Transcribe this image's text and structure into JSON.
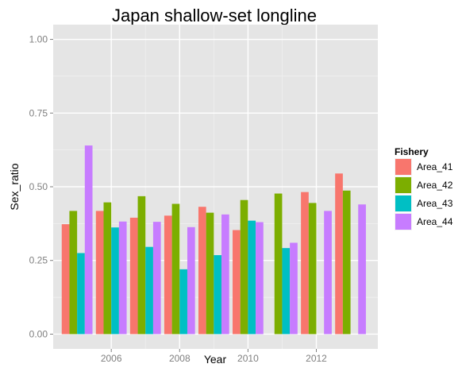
{
  "chart_data": {
    "type": "bar",
    "title": "Japan shallow-set longline",
    "xlabel": "Year",
    "ylabel": "Sex_ratio",
    "ylim": [
      -0.05,
      1.05
    ],
    "yticks": [
      "0.00",
      "0.25",
      "0.50",
      "0.75",
      "1.00"
    ],
    "ytick_values": [
      0,
      0.25,
      0.5,
      0.75,
      1.0
    ],
    "xticks": [
      "2006",
      "2008",
      "2010",
      "2012"
    ],
    "xtick_values": [
      2006,
      2008,
      2010,
      2012
    ],
    "xlim": [
      2004.3,
      2013.8
    ],
    "x": [
      2005,
      2006,
      2007,
      2008,
      2009,
      2010,
      2011,
      2012,
      2013
    ],
    "grid": true,
    "legend": {
      "title": "Fishery",
      "placement": "right"
    },
    "series": [
      {
        "name": "Area_41",
        "color": "#F8766D",
        "values": [
          0.373,
          0.418,
          0.395,
          0.402,
          0.432,
          0.353,
          null,
          0.482,
          0.545
        ]
      },
      {
        "name": "Area_42",
        "color": "#7CAE00",
        "values": [
          0.418,
          0.447,
          0.468,
          0.442,
          0.412,
          0.455,
          0.477,
          0.445,
          0.487
        ]
      },
      {
        "name": "Area_43",
        "color": "#00BFC4",
        "values": [
          0.275,
          0.362,
          0.296,
          0.22,
          0.268,
          0.385,
          0.292,
          null,
          null
        ]
      },
      {
        "name": "Area_44",
        "color": "#C77CFF",
        "values": [
          0.64,
          0.382,
          0.381,
          0.363,
          0.406,
          0.38,
          0.31,
          0.418,
          0.44
        ]
      }
    ]
  }
}
